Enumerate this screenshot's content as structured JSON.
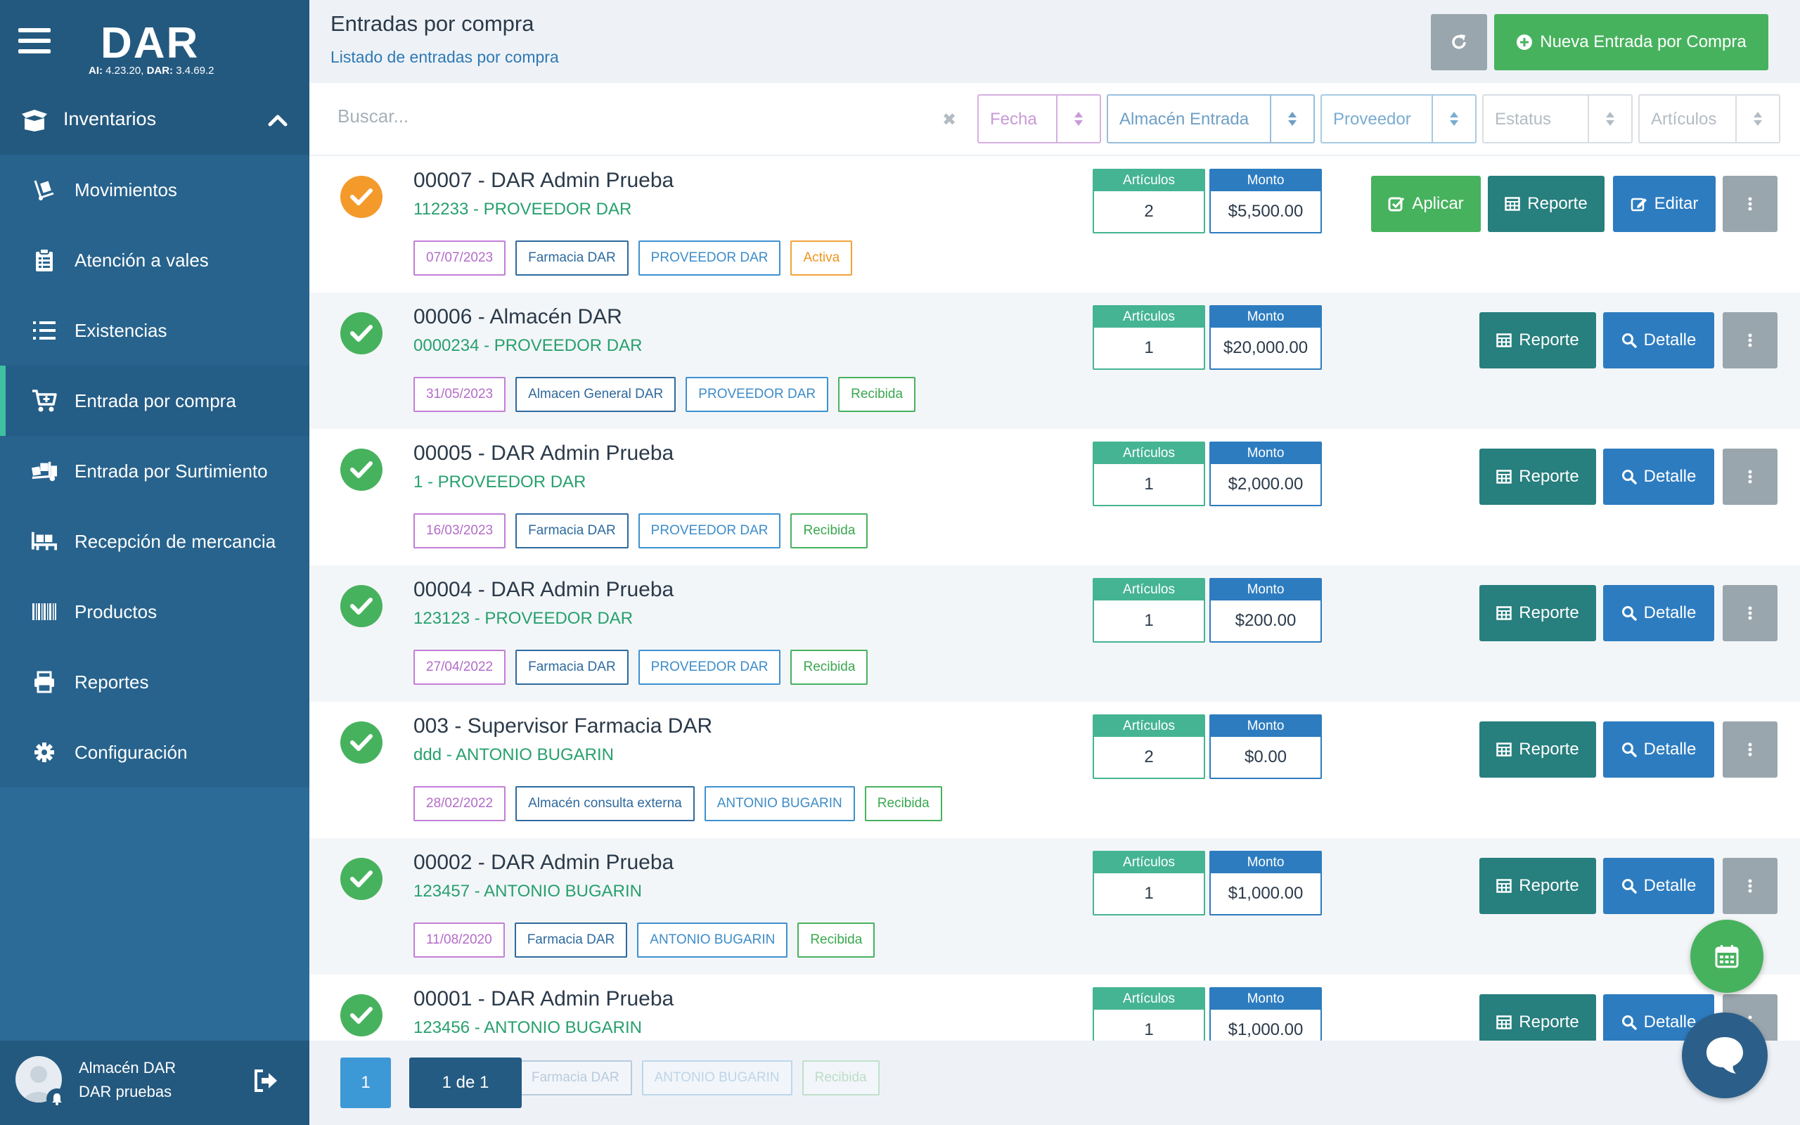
{
  "sidebar": {
    "logo": "DAR",
    "version_ai_label": "AI:",
    "version_ai": "4.23.20,",
    "version_dar_label": "DAR:",
    "version_dar": "3.4.69.2",
    "section": "Inventarios",
    "items": [
      {
        "label": "Movimientos",
        "icon": "dolly-icon"
      },
      {
        "label": "Atención a vales",
        "icon": "clipboard-icon"
      },
      {
        "label": "Existencias",
        "icon": "list-ol-icon"
      },
      {
        "label": "Entrada por compra",
        "icon": "cart-plus-icon",
        "active": true
      },
      {
        "label": "Entrada por Surtimiento",
        "icon": "truck-loading-icon"
      },
      {
        "label": "Recepción de mercancia",
        "icon": "pallet-icon"
      },
      {
        "label": "Productos",
        "icon": "barcode-icon"
      },
      {
        "label": "Reportes",
        "icon": "printer-icon"
      },
      {
        "label": "Configuración",
        "icon": "gear-icon"
      }
    ],
    "user": {
      "name": "Almacén DAR",
      "sub": "DAR pruebas"
    }
  },
  "header": {
    "title": "Entradas por compra",
    "subtitle": "Listado de entradas por compra",
    "new_button": "Nueva Entrada por Compra"
  },
  "filters": {
    "search_placeholder": "Buscar...",
    "fecha": "Fecha",
    "almacen": "Almacén Entrada",
    "proveedor": "Proveedor",
    "estatus": "Estatus",
    "articulos": "Artículos"
  },
  "labels": {
    "articulos": "Artículos",
    "monto": "Monto",
    "aplicar": "Aplicar",
    "reporte": "Reporte",
    "editar": "Editar",
    "detalle": "Detalle"
  },
  "rows": [
    {
      "title": "00007 - DAR Admin Prueba",
      "sub": "112233 - PROVEEDOR DAR",
      "date": "07/07/2023",
      "almacen": "Farmacia DAR",
      "proveedor": "PROVEEDOR DAR",
      "status": "Activa",
      "articulos": "2",
      "monto": "$5,500.00",
      "state": "pending"
    },
    {
      "title": "00006 - Almacén DAR",
      "sub": "0000234 - PROVEEDOR DAR",
      "date": "31/05/2023",
      "almacen": "Almacen General DAR",
      "proveedor": "PROVEEDOR DAR",
      "status": "Recibida",
      "articulos": "1",
      "monto": "$20,000.00",
      "state": "done"
    },
    {
      "title": "00005 - DAR Admin Prueba",
      "sub": "1 - PROVEEDOR DAR",
      "date": "16/03/2023",
      "almacen": "Farmacia DAR",
      "proveedor": "PROVEEDOR DAR",
      "status": "Recibida",
      "articulos": "1",
      "monto": "$2,000.00",
      "state": "done"
    },
    {
      "title": "00004 - DAR Admin Prueba",
      "sub": "123123 - PROVEEDOR DAR",
      "date": "27/04/2022",
      "almacen": "Farmacia DAR",
      "proveedor": "PROVEEDOR DAR",
      "status": "Recibida",
      "articulos": "1",
      "monto": "$200.00",
      "state": "done"
    },
    {
      "title": "003 - Supervisor Farmacia DAR",
      "sub": "ddd - ANTONIO BUGARIN",
      "date": "28/02/2022",
      "almacen": "Almacén consulta externa",
      "proveedor": "ANTONIO BUGARIN",
      "status": "Recibida",
      "articulos": "2",
      "monto": "$0.00",
      "state": "done"
    },
    {
      "title": "00002 - DAR Admin Prueba",
      "sub": "123457 - ANTONIO BUGARIN",
      "date": "11/08/2020",
      "almacen": "Farmacia DAR",
      "proveedor": "ANTONIO BUGARIN",
      "status": "Recibida",
      "articulos": "1",
      "monto": "$1,000.00",
      "state": "done"
    },
    {
      "title": "00001 - DAR Admin Prueba",
      "sub": "123456 - ANTONIO BUGARIN",
      "date": "",
      "almacen": "Farmacia DAR",
      "proveedor": "ANTONIO BUGARIN",
      "status": "Recibida",
      "articulos": "1",
      "monto": "$1,000.00",
      "state": "done"
    }
  ],
  "pagination": {
    "current": "1",
    "info": "1 de 1"
  },
  "colors": {
    "sidebar": "#2c6a97",
    "accent_green": "#47b25e",
    "teal": "#277f7e",
    "blue": "#2d7cc0",
    "orange": "#f39a2b"
  }
}
